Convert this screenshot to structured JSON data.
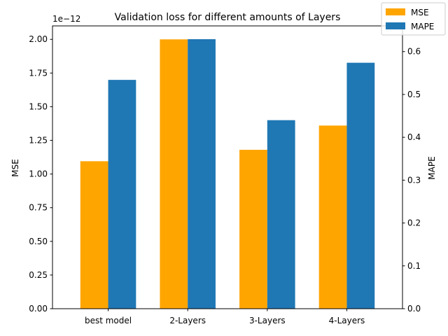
{
  "chart_data": {
    "type": "bar",
    "title": "Validation loss for different amounts of Layers",
    "categories": [
      "best model",
      "2-Layers",
      "3-Layers",
      "4-Layers"
    ],
    "left_axis": {
      "label": "MSE",
      "offset_text": "1e−12",
      "ylim": [
        0,
        2.1
      ],
      "ticks": [
        0.0,
        0.25,
        0.5,
        0.75,
        1.0,
        1.25,
        1.5,
        1.75,
        2.0
      ],
      "tick_labels": [
        "0.00",
        "0.25",
        "0.50",
        "0.75",
        "1.00",
        "1.25",
        "1.50",
        "1.75",
        "2.00"
      ]
    },
    "right_axis": {
      "label": "MAPE",
      "ylim": [
        0,
        0.66
      ],
      "ticks": [
        0.0,
        0.1,
        0.2,
        0.3,
        0.4,
        0.5,
        0.6
      ],
      "tick_labels": [
        "0.0",
        "0.1",
        "0.2",
        "0.3",
        "0.4",
        "0.5",
        "0.6"
      ]
    },
    "series": [
      {
        "name": "MSE",
        "axis": "left",
        "color": "#ffa500",
        "values": [
          1.095,
          2.0,
          1.18,
          1.36
        ]
      },
      {
        "name": "MAPE",
        "axis": "right",
        "color": "#1f77b4",
        "values": [
          0.534,
          0.629,
          0.44,
          0.574
        ]
      }
    ],
    "legend_position": "top-right",
    "grid": false
  }
}
